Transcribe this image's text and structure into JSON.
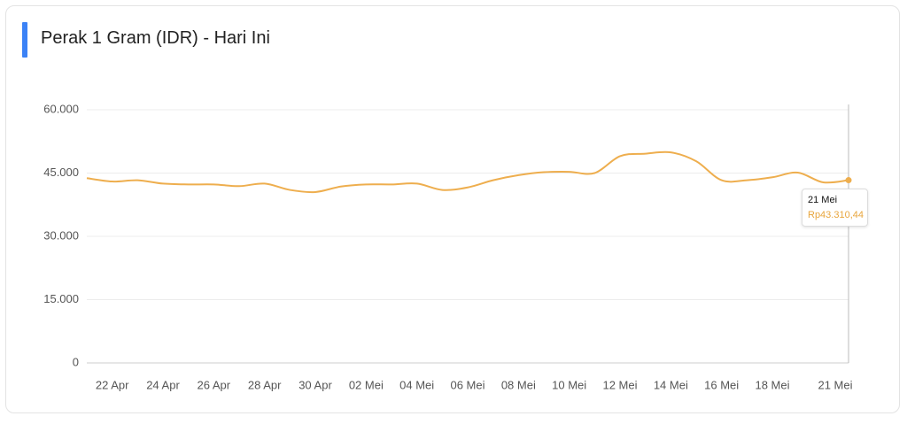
{
  "chart_data": {
    "type": "line",
    "title": "Perak 1 Gram (IDR) - Hari Ini",
    "categories": [
      null,
      "22 Apr",
      null,
      "24 Apr",
      null,
      "26 Apr",
      null,
      "28 Apr",
      null,
      "30 Apr",
      null,
      "02 Mei",
      null,
      "04 Mei",
      null,
      "06 Mei",
      null,
      "08 Mei",
      null,
      "10 Mei",
      null,
      "12 Mei",
      null,
      "14 Mei",
      null,
      "16 Mei",
      null,
      "18 Mei",
      null,
      null,
      "21 Mei"
    ],
    "series": [
      {
        "color": "#eeae4e",
        "values": [
          43800,
          43000,
          43300,
          42500,
          42300,
          42300,
          41900,
          42500,
          41000,
          40500,
          41800,
          42300,
          42300,
          42500,
          41000,
          41600,
          43300,
          44500,
          45200,
          45300,
          45000,
          49000,
          49600,
          49900,
          47800,
          43300,
          43300,
          44000,
          45100,
          42800,
          43310.44
        ]
      }
    ],
    "ylim": [
      0,
      60000
    ],
    "yticks": [
      0,
      {
        "value": 15000,
        "label": "15.000"
      },
      {
        "value": 30000,
        "label": "30.000"
      },
      {
        "value": 45000,
        "label": "45.000"
      },
      {
        "value": 60000,
        "label": "60.000"
      }
    ],
    "grid": true,
    "tooltip": {
      "text": "Rp43.310,44"
    }
  }
}
